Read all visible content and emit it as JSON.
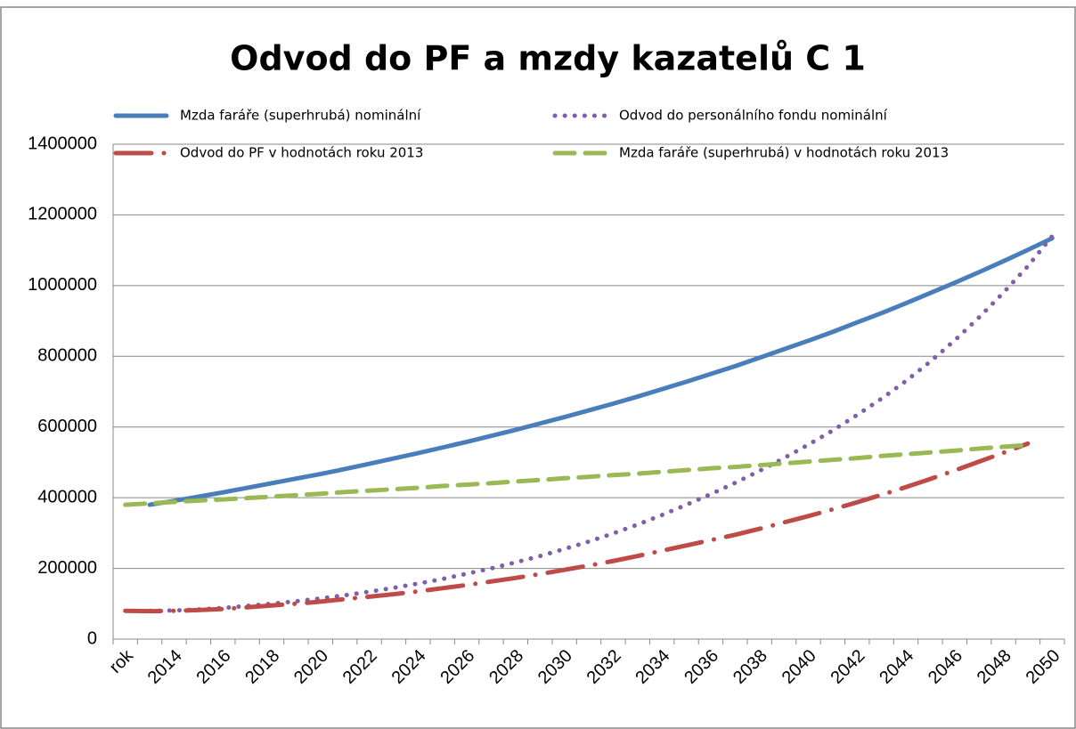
{
  "chart_data": {
    "type": "line",
    "title": "Odvod do PF a mzdy kazatelů C 1",
    "categories": [
      "rok",
      null,
      "2014",
      null,
      "2016",
      null,
      "2018",
      null,
      "2020",
      null,
      "2022",
      null,
      "2024",
      null,
      "2026",
      null,
      "2028",
      null,
      "2030",
      null,
      "2032",
      null,
      "2034",
      null,
      "2036",
      null,
      "2038",
      null,
      "2040",
      null,
      "2042",
      null,
      "2044",
      null,
      "2046",
      null,
      "2048",
      null,
      "2050"
    ],
    "series": [
      {
        "name": "Mzda faráře (superhrubá) nominální",
        "color": "#4a7ebb",
        "dash": "solid",
        "values": [
          null,
          380000,
          391000,
          403000,
          415000,
          428000,
          441000,
          454000,
          467000,
          481000,
          496000,
          511000,
          526000,
          542000,
          558000,
          575000,
          592000,
          610000,
          628000,
          647000,
          666000,
          686000,
          707000,
          728000,
          750000,
          772000,
          796000,
          820000,
          844000,
          869000,
          896000,
          922000,
          950000,
          979000,
          1008000,
          1038000,
          1069000,
          1101000,
          1134000
        ]
      },
      {
        "name": "Odvod do personálního fondu nominální",
        "color": "#7f5fa8",
        "dash": "dot",
        "values": [
          null,
          80000,
          81000,
          84000,
          88000,
          94000,
          100000,
          107000,
          115000,
          124000,
          134000,
          145000,
          157000,
          170000,
          185000,
          200000,
          217000,
          235000,
          255000,
          276000,
          299000,
          324000,
          351000,
          380000,
          410000,
          442000,
          476000,
          512000,
          550000,
          590000,
          634000,
          680000,
          730000,
          785000,
          845000,
          910000,
          980000,
          1055000,
          1140000
        ]
      },
      {
        "name": "Odvod do PF v hodnotách roku 2013",
        "color": "#be4b48",
        "dash": "dashdot",
        "values": [
          80000,
          79000,
          80000,
          82000,
          85000,
          90000,
          95000,
          100000,
          106000,
          113000,
          120000,
          127000,
          135000,
          144000,
          153000,
          163000,
          173000,
          184000,
          196000,
          208000,
          221000,
          235000,
          250000,
          265000,
          280000,
          295000,
          312000,
          330000,
          348000,
          367000,
          387000,
          408000,
          430000,
          453000,
          477000,
          502000,
          527000,
          553000,
          null
        ]
      },
      {
        "name": "Mzda faráře (superhrubá) v hodnotách roku 2013",
        "color": "#98b954",
        "dash": "dash",
        "values": [
          380000,
          384000,
          388000,
          392000,
          395000,
          399000,
          403000,
          407000,
          411000,
          416000,
          420000,
          424000,
          428000,
          433000,
          437000,
          441000,
          446000,
          450000,
          455000,
          459000,
          464000,
          468000,
          473000,
          478000,
          483000,
          487000,
          492000,
          497000,
          502000,
          507000,
          512000,
          518000,
          523000,
          528000,
          533000,
          539000,
          544000,
          549000,
          null
        ]
      }
    ],
    "ylim": [
      0,
      1400000
    ],
    "yticks": [
      0,
      200000,
      400000,
      600000,
      800000,
      1000000,
      1200000,
      1400000
    ],
    "grid": true,
    "legend": "top"
  }
}
